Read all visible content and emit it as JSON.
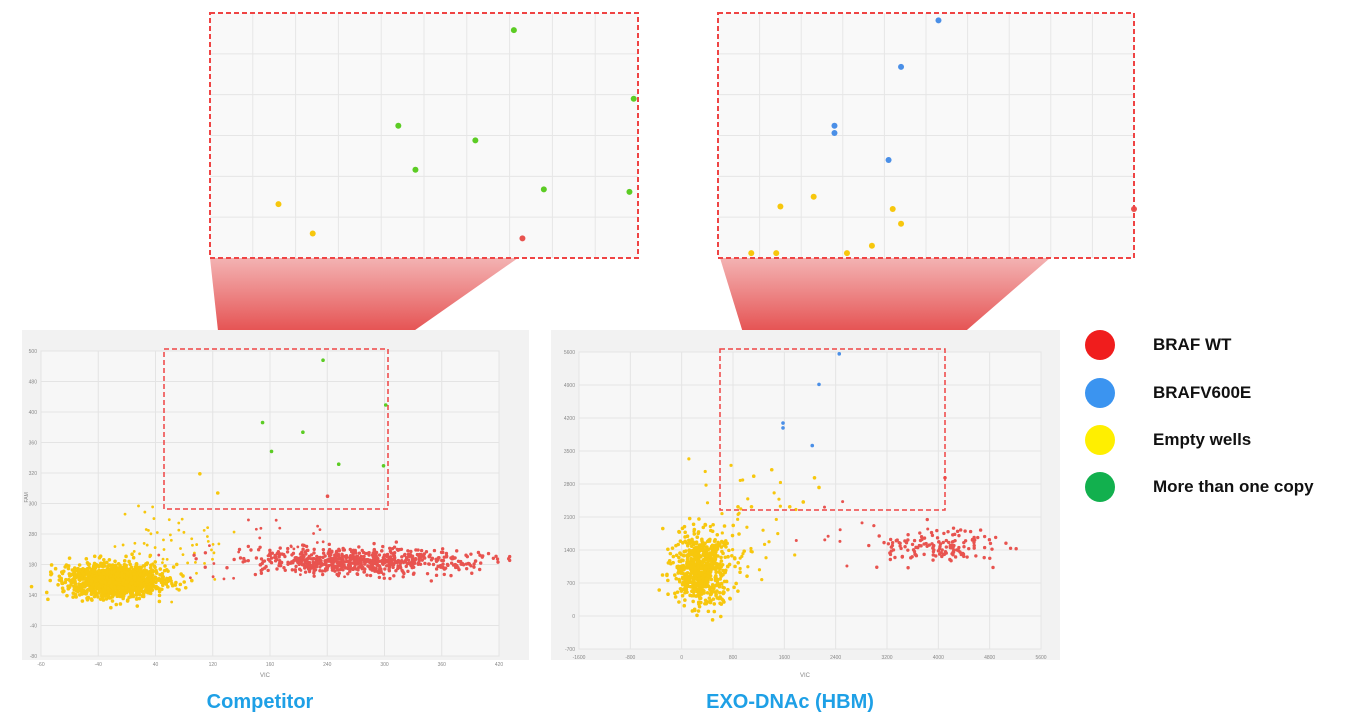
{
  "colors": {
    "braf_wt": "#e8534f",
    "braf_v600e": "#4a8fe7",
    "empty_wells": "#f7c70d",
    "more_than_one_copy": "#5ccc24",
    "legend_wt": "#f01d1d",
    "legend_v600e": "#3b94f0",
    "legend_empty": "#ffef00",
    "legend_multi": "#12b04e",
    "caption": "#1ea0e6",
    "zoom_box": "#ef4444"
  },
  "legend": [
    {
      "label": "BRAF WT",
      "color_key": "legend_wt"
    },
    {
      "label": "BRAFV600E",
      "color_key": "legend_v600e"
    },
    {
      "label": "Empty wells",
      "color_key": "legend_empty"
    },
    {
      "label": "More than one copy",
      "color_key": "legend_multi"
    }
  ],
  "captions": {
    "left": "Competitor",
    "right": "EXO-DNAc (HBM)"
  },
  "chart_data": [
    {
      "type": "scatter",
      "title": "Competitor",
      "xlabel": "VIC",
      "ylabel": "FAM",
      "xticks": [
        "-60",
        "-40",
        "40",
        "120",
        "160",
        "240",
        "300",
        "360",
        "420"
      ],
      "yticks": [
        "-80",
        "-40",
        "140",
        "180",
        "280",
        "300",
        "320",
        "360",
        "400",
        "480",
        "500"
      ],
      "grid": true,
      "zoom_points": [
        {
          "x": 0.71,
          "y": 0.93,
          "cls": "more_than_one_copy"
        },
        {
          "x": 0.44,
          "y": 0.54,
          "cls": "more_than_one_copy"
        },
        {
          "x": 0.62,
          "y": 0.48,
          "cls": "more_than_one_copy"
        },
        {
          "x": 0.48,
          "y": 0.36,
          "cls": "more_than_one_copy"
        },
        {
          "x": 0.78,
          "y": 0.28,
          "cls": "more_than_one_copy"
        },
        {
          "x": 0.99,
          "y": 0.65,
          "cls": "more_than_one_copy"
        },
        {
          "x": 0.98,
          "y": 0.27,
          "cls": "more_than_one_copy"
        },
        {
          "x": 0.16,
          "y": 0.22,
          "cls": "empty_wells"
        },
        {
          "x": 0.24,
          "y": 0.1,
          "cls": "empty_wells"
        },
        {
          "x": 0.73,
          "y": 0.08,
          "cls": "braf_wt"
        }
      ]
    },
    {
      "type": "scatter",
      "title": "EXO-DNAc (HBM)",
      "xlabel": "VIC",
      "ylabel": "",
      "xticks": [
        "-1600",
        "-800",
        "0",
        "800",
        "1600",
        "2400",
        "3200",
        "4000",
        "4800",
        "5600"
      ],
      "yticks": [
        "-700",
        "0",
        "700",
        "1400",
        "2100",
        "2800",
        "3500",
        "4200",
        "4900",
        "5600"
      ],
      "grid": true,
      "zoom_points": [
        {
          "x": 0.53,
          "y": 0.97,
          "cls": "braf_v600e"
        },
        {
          "x": 0.44,
          "y": 0.78,
          "cls": "braf_v600e"
        },
        {
          "x": 0.28,
          "y": 0.54,
          "cls": "braf_v600e"
        },
        {
          "x": 0.28,
          "y": 0.51,
          "cls": "braf_v600e"
        },
        {
          "x": 0.41,
          "y": 0.4,
          "cls": "braf_v600e"
        },
        {
          "x": 0.15,
          "y": 0.21,
          "cls": "empty_wells"
        },
        {
          "x": 0.23,
          "y": 0.25,
          "cls": "empty_wells"
        },
        {
          "x": 0.42,
          "y": 0.2,
          "cls": "empty_wells"
        },
        {
          "x": 0.44,
          "y": 0.14,
          "cls": "empty_wells"
        },
        {
          "x": 0.37,
          "y": 0.05,
          "cls": "empty_wells"
        },
        {
          "x": 0.31,
          "y": 0.02,
          "cls": "empty_wells"
        },
        {
          "x": 0.08,
          "y": 0.02,
          "cls": "empty_wells"
        },
        {
          "x": 0.14,
          "y": 0.02,
          "cls": "empty_wells"
        },
        {
          "x": 1.0,
          "y": 0.2,
          "cls": "braf_wt"
        }
      ]
    }
  ]
}
